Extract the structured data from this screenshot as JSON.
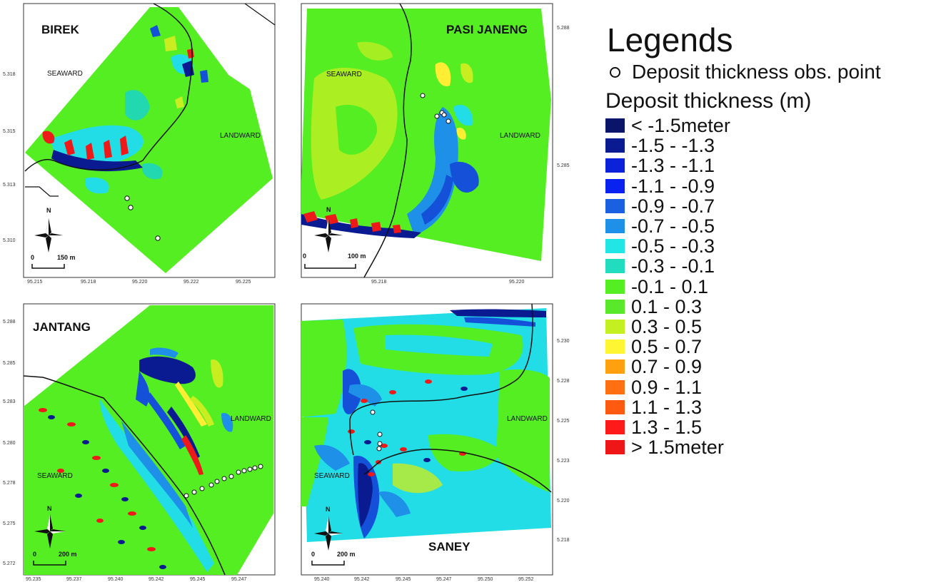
{
  "colors": {
    "base": "#55ee22",
    "deep_blue": "#0a1a90",
    "blue": "#1550d8",
    "mid_blue": "#1e90e8",
    "cyan": "#22dde6",
    "teal": "#22d8b0",
    "yellow_green": "#c8ee22",
    "yellow": "#ffee33",
    "orange": "#ff8a10",
    "red": "#ee1a1a",
    "coast_line": "#111111"
  },
  "panels": {
    "birek": {
      "title": "BIREK",
      "seaward": "SEAWARD",
      "landward": "LANDWARD",
      "north": "N",
      "scale_zero": "0",
      "scale_label": "150 m",
      "y_ticks": [
        "5.318",
        "5.315",
        "5.313",
        "5.310"
      ],
      "x_ticks": [
        "95.215",
        "95.218",
        "95.220",
        "95.222",
        "95.225"
      ]
    },
    "pasi_janeng": {
      "title": "PASI JANENG",
      "seaward": "SEAWARD",
      "landward": "LANDWARD",
      "north": "N",
      "scale_zero": "0",
      "scale_label": "100 m",
      "y_ticks": [
        "5.288",
        "5.285"
      ],
      "x_ticks": [
        "95.218",
        "95.220"
      ]
    },
    "jantang": {
      "title": "JANTANG",
      "seaward": "SEAWARD",
      "landward": "LANDWARD",
      "north": "N",
      "scale_zero": "0",
      "scale_label": "200 m",
      "y_ticks": [
        "5.288",
        "5.285",
        "5.283",
        "5.280",
        "5.278",
        "5.275",
        "5.272"
      ],
      "x_ticks": [
        "95.235",
        "95.237",
        "95.240",
        "95.242",
        "95.245",
        "95.247"
      ]
    },
    "saney": {
      "title": "SANEY",
      "seaward": "SEAWARD",
      "landward": "LANDWARD",
      "north": "N",
      "scale_zero": "0",
      "scale_label": "200 m",
      "y_ticks": [
        "5.230",
        "5.228",
        "5.225",
        "5.223",
        "5.220",
        "5.218"
      ],
      "x_ticks": [
        "95.240",
        "95.242",
        "95.245",
        "95.247",
        "95.250",
        "95.252"
      ]
    }
  },
  "legend": {
    "title": "Legends",
    "obs_label": "Deposit thickness obs. point",
    "subtitle": "Deposit thickness (m)",
    "classes": [
      {
        "label": "< -1.5meter",
        "color": "#0a1468"
      },
      {
        "label": "-1.5 - -1.3",
        "color": "#0a1a90"
      },
      {
        "label": "-1.3 - -1.1",
        "color": "#0c22d8"
      },
      {
        "label": "-1.1 - -0.9",
        "color": "#0a22f0"
      },
      {
        "label": "-0.9 - -0.7",
        "color": "#1a60e0"
      },
      {
        "label": "-0.7 - -0.5",
        "color": "#1e90e8"
      },
      {
        "label": "-0.5 - -0.3",
        "color": "#22e6e6"
      },
      {
        "label": "-0.3 - -0.1",
        "color": "#22dcc0"
      },
      {
        "label": "-0.1 - 0.1",
        "color": "#55ee22"
      },
      {
        "label": "0.1 - 0.3",
        "color": "#5ae82a"
      },
      {
        "label": "0.3 - 0.5",
        "color": "#c4f022"
      },
      {
        "label": "0.5 - 0.7",
        "color": "#fff633"
      },
      {
        "label": "0.7 - 0.9",
        "color": "#ffa010"
      },
      {
        "label": "0.9 - 1.1",
        "color": "#ff7012"
      },
      {
        "label": "1.1 - 1.3",
        "color": "#ff5a10"
      },
      {
        "label": "1.3 - 1.5",
        "color": "#ff1a1a"
      },
      {
        "label": "> 1.5meter",
        "color": "#ee1616"
      }
    ]
  }
}
